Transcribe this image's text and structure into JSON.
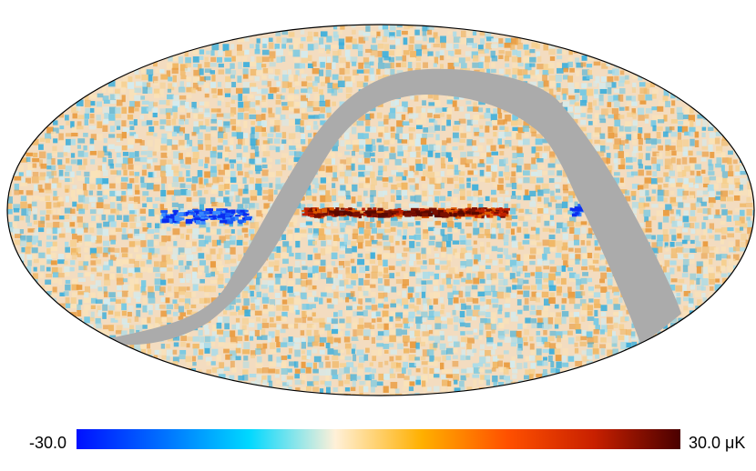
{
  "colorbar": {
    "min_label": "-30.0",
    "max_label": "30.0 μK",
    "stops": [
      "#0010ff",
      "#0070ff",
      "#00d8ff",
      "#fff0d8",
      "#ffb000",
      "#ff5000",
      "#c82000",
      "#4a0000"
    ]
  },
  "colors": {
    "mask": "#ababab",
    "outline": "#000000",
    "background": "#ffffff",
    "noise_neg": [
      "#6ec8e6",
      "#a8dcea",
      "#3aaedc",
      "#d2ecf0"
    ],
    "noise_pos": [
      "#f6cf8c",
      "#f0b560",
      "#fae3b8",
      "#e99a3c"
    ],
    "plane_hot": [
      "#c02000",
      "#7a1000",
      "#e05a00"
    ],
    "plane_cold": [
      "#0a2cf0",
      "#1a5cf8",
      "#3a8cff"
    ]
  }
}
